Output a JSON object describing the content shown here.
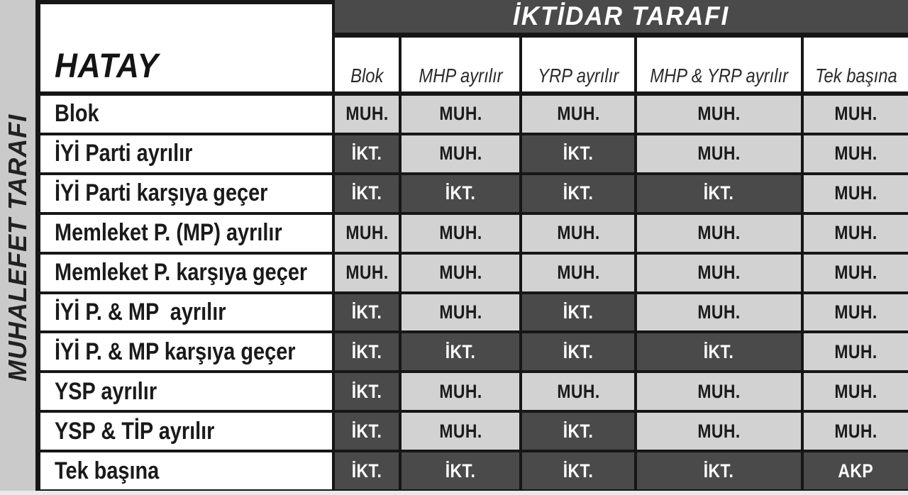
{
  "chart_data": {
    "type": "table",
    "title": "HATAY",
    "column_group_label": "İKTİDAR TARAFI",
    "row_group_label": "MUHALEFET TARAFI",
    "columns": [
      "Blok",
      "MHP ayrılır",
      "YRP ayrılır",
      "MHP & YRP ayrılır",
      "Tek başına"
    ],
    "rows": [
      {
        "label": "Blok",
        "values": [
          "MUH.",
          "MUH.",
          "MUH.",
          "MUH.",
          "MUH."
        ]
      },
      {
        "label": "İYİ Parti ayrılır",
        "values": [
          "İKT.",
          "MUH.",
          "İKT.",
          "MUH.",
          "MUH."
        ]
      },
      {
        "label": "İYİ Parti karşıya geçer",
        "values": [
          "İKT.",
          "İKT.",
          "İKT.",
          "İKT.",
          "MUH."
        ]
      },
      {
        "label": "Memleket P. (MP) ayrılır",
        "values": [
          "MUH.",
          "MUH.",
          "MUH.",
          "MUH.",
          "MUH."
        ]
      },
      {
        "label": "Memleket P. karşıya geçer",
        "values": [
          "MUH.",
          "MUH.",
          "MUH.",
          "MUH.",
          "MUH."
        ]
      },
      {
        "label": "İYİ P. & MP  ayrılır",
        "values": [
          "İKT.",
          "MUH.",
          "İKT.",
          "MUH.",
          "MUH."
        ]
      },
      {
        "label": "İYİ P. & MP karşıya geçer",
        "values": [
          "İKT.",
          "İKT.",
          "İKT.",
          "İKT.",
          "MUH."
        ]
      },
      {
        "label": "YSP ayrılır",
        "values": [
          "İKT.",
          "MUH.",
          "MUH.",
          "MUH.",
          "MUH."
        ]
      },
      {
        "label": "YSP & TİP ayrılır",
        "values": [
          "İKT.",
          "MUH.",
          "İKT.",
          "MUH.",
          "MUH."
        ]
      },
      {
        "label": "Tek başına",
        "values": [
          "İKT.",
          "İKT.",
          "İKT.",
          "İKT.",
          "AKP"
        ]
      }
    ],
    "cell_value_styles": {
      "MUH.": "light",
      "İKT.": "dark",
      "AKP": "dark"
    },
    "colors": {
      "dark_cell": "#4a4a4a",
      "light_cell": "#d2d2d2",
      "side_strip": "#cacaca",
      "grid_line": "#161616",
      "header_bar": "#4a4a4a",
      "page_bottom": "#e9e9e9"
    },
    "layout": {
      "legend_position": "none",
      "grid": true
    }
  }
}
